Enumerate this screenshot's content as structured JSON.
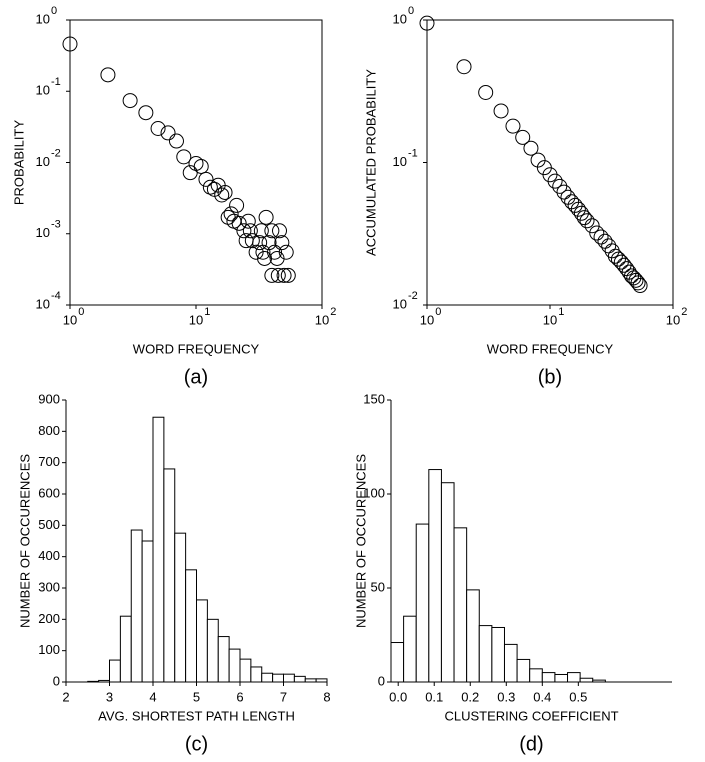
{
  "chart_data": [
    {
      "type": "scatter",
      "caption": "(a)",
      "xlabel": "WORD FREQUENCY",
      "ylabel": "PROBABILITY",
      "xscale": "log",
      "yscale": "log",
      "xlim": [
        1,
        100
      ],
      "ylim": [
        0.0001,
        1
      ],
      "xticks": [
        {
          "value": 1,
          "label": "10",
          "exponent": "0"
        },
        {
          "value": 10,
          "label": "10",
          "exponent": "1"
        },
        {
          "value": 100,
          "label": "10",
          "exponent": "2"
        }
      ],
      "yticks": [
        {
          "value": 0.0001,
          "label": "10",
          "exponent": "-4"
        },
        {
          "value": 0.001,
          "label": "10",
          "exponent": "-3"
        },
        {
          "value": 0.01,
          "label": "10",
          "exponent": "-2"
        },
        {
          "value": 0.1,
          "label": "10",
          "exponent": "-1"
        },
        {
          "value": 1,
          "label": "10",
          "exponent": "0"
        }
      ],
      "x": [
        1,
        2,
        3,
        4,
        5,
        6,
        7,
        8,
        9,
        10,
        11,
        12,
        13,
        14,
        15,
        16,
        17,
        18,
        19,
        20,
        21,
        22,
        24,
        25,
        26,
        27,
        28,
        30,
        32,
        33,
        34,
        35,
        36,
        38,
        40,
        40,
        42,
        44,
        45,
        46,
        48,
        50,
        52,
        54
      ],
      "y": [
        0.46,
        0.17,
        0.074,
        0.05,
        0.03,
        0.026,
        0.02,
        0.012,
        0.0072,
        0.0097,
        0.0088,
        0.0058,
        0.0045,
        0.0042,
        0.0048,
        0.0035,
        0.0038,
        0.0017,
        0.0019,
        0.0015,
        0.0025,
        0.0014,
        0.0011,
        0.0008,
        0.0015,
        0.0011,
        0.0008,
        0.00055,
        0.00075,
        0.0011,
        0.00055,
        0.00045,
        0.0017,
        0.00075,
        0.00026,
        0.0011,
        0.00055,
        0.00045,
        0.00026,
        0.0011,
        0.00075,
        0.00026,
        0.00055,
        0.00026
      ],
      "color": "#000000"
    },
    {
      "type": "scatter",
      "caption": "(b)",
      "xlabel": "WORD FREQUENCY",
      "ylabel": "ACCUMULATED PROBABILITY",
      "xscale": "log",
      "yscale": "log",
      "xlim": [
        1,
        100
      ],
      "ylim": [
        0.01,
        1
      ],
      "xticks": [
        {
          "value": 1,
          "label": "10",
          "exponent": "0"
        },
        {
          "value": 10,
          "label": "10",
          "exponent": "1"
        },
        {
          "value": 100,
          "label": "10",
          "exponent": "2"
        }
      ],
      "yticks": [
        {
          "value": 0.01,
          "label": "10",
          "exponent": "-2"
        },
        {
          "value": 0.1,
          "label": "10",
          "exponent": "-1"
        },
        {
          "value": 1,
          "label": "10",
          "exponent": "0"
        }
      ],
      "x": [
        1,
        2,
        3,
        4,
        5,
        6,
        7,
        8,
        9,
        10,
        11,
        12,
        13,
        14,
        15,
        16,
        17,
        18,
        19,
        20,
        22,
        24,
        26,
        28,
        30,
        32,
        34,
        36,
        38,
        40,
        42,
        44,
        46,
        48,
        50,
        52,
        54
      ],
      "y": [
        0.95,
        0.47,
        0.31,
        0.23,
        0.18,
        0.15,
        0.126,
        0.104,
        0.092,
        0.082,
        0.074,
        0.068,
        0.062,
        0.057,
        0.053,
        0.05,
        0.047,
        0.044,
        0.041,
        0.039,
        0.036,
        0.032,
        0.03,
        0.028,
        0.026,
        0.024,
        0.022,
        0.021,
        0.02,
        0.019,
        0.018,
        0.017,
        0.016,
        0.0155,
        0.0149,
        0.0143,
        0.0137
      ],
      "color": "#000000"
    },
    {
      "type": "histogram",
      "caption": "(c)",
      "xlabel": "AVG. SHORTEST PATH LENGTH",
      "ylabel": "NUMBER OF OCCURENCES",
      "xlim": [
        2,
        8
      ],
      "ylim": [
        0,
        900
      ],
      "xticks": [
        2,
        3,
        4,
        5,
        6,
        7,
        8
      ],
      "yticks": [
        0,
        100,
        200,
        300,
        400,
        500,
        600,
        700,
        800,
        900
      ],
      "bins": [
        2,
        2.25,
        2.5,
        2.75,
        3,
        3.25,
        3.5,
        3.75,
        4,
        4.25,
        4.5,
        4.75,
        5,
        5.25,
        5.5,
        5.75,
        6,
        6.25,
        6.5,
        6.75,
        7,
        7.25,
        7.5,
        7.75,
        8
      ],
      "values": [
        0,
        0,
        2,
        5,
        70,
        210,
        485,
        450,
        845,
        680,
        475,
        358,
        262,
        200,
        145,
        105,
        73,
        48,
        28,
        25,
        25,
        18,
        10,
        10
      ],
      "color": "#ffffff"
    },
    {
      "type": "histogram",
      "caption": "(d)",
      "xlabel": "CLUSTERING COEFFICIENT",
      "ylabel": "NUMBER OF OCCURENCES",
      "xlim": [
        -0.02,
        0.76
      ],
      "ylim": [
        0,
        150
      ],
      "xticks": [
        {
          "value": 0,
          "label": "0.0"
        },
        0.1,
        0.2,
        0.3,
        0.4,
        0.5
      ],
      "yticks": [
        0,
        50,
        100,
        150
      ],
      "bins": [
        -0.02,
        0.015,
        0.05,
        0.085,
        0.12,
        0.155,
        0.19,
        0.225,
        0.26,
        0.295,
        0.33,
        0.365,
        0.4,
        0.435,
        0.47,
        0.505,
        0.54,
        0.575
      ],
      "values": [
        21,
        35,
        84,
        113,
        106,
        82,
        49,
        30,
        29,
        20,
        12,
        7,
        5,
        4,
        5,
        2,
        1
      ],
      "color": "#ffffff"
    }
  ]
}
